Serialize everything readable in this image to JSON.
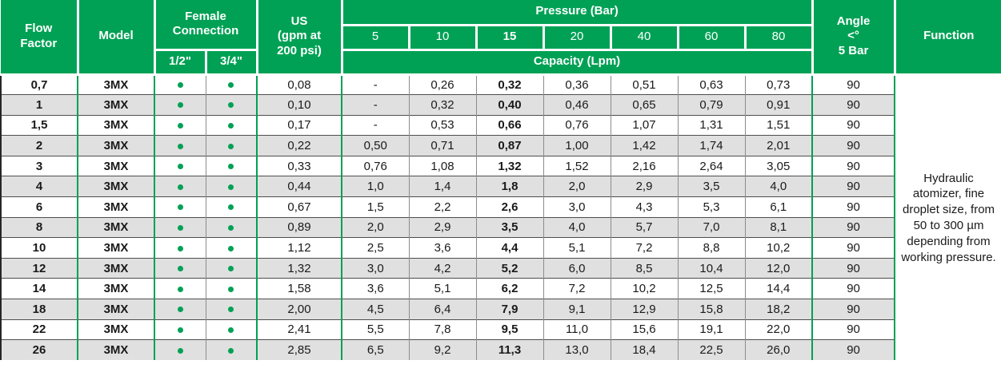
{
  "table": {
    "headers": {
      "flow_factor": "Flow\nFactor",
      "model": "Model",
      "female_connection": "Female\nConnection",
      "half_inch": "1/2\"",
      "three_quarter_inch": "3/4\"",
      "us_gpm": "US\n(gpm at\n200 psi)",
      "pressure_bar": "Pressure (Bar)",
      "pressure_ticks": [
        "5",
        "10",
        "15",
        "20",
        "40",
        "60",
        "80"
      ],
      "capacity_lpm": "Capacity (Lpm)",
      "angle": "Angle\n<°\n5 Bar",
      "function": "Function"
    },
    "rows": [
      {
        "flow_factor": "0,7",
        "model": "3MX",
        "half": true,
        "three_quarter": true,
        "us_gpm": "0,08",
        "capacities": [
          "-",
          "0,26",
          "0,32",
          "0,36",
          "0,51",
          "0,63",
          "0,73"
        ],
        "angle": "90"
      },
      {
        "flow_factor": "1",
        "model": "3MX",
        "half": true,
        "three_quarter": true,
        "us_gpm": "0,10",
        "capacities": [
          "-",
          "0,32",
          "0,40",
          "0,46",
          "0,65",
          "0,79",
          "0,91"
        ],
        "angle": "90"
      },
      {
        "flow_factor": "1,5",
        "model": "3MX",
        "half": true,
        "three_quarter": true,
        "us_gpm": "0,17",
        "capacities": [
          "-",
          "0,53",
          "0,66",
          "0,76",
          "1,07",
          "1,31",
          "1,51"
        ],
        "angle": "90"
      },
      {
        "flow_factor": "2",
        "model": "3MX",
        "half": true,
        "three_quarter": true,
        "us_gpm": "0,22",
        "capacities": [
          "0,50",
          "0,71",
          "0,87",
          "1,00",
          "1,42",
          "1,74",
          "2,01"
        ],
        "angle": "90"
      },
      {
        "flow_factor": "3",
        "model": "3MX",
        "half": true,
        "three_quarter": true,
        "us_gpm": "0,33",
        "capacities": [
          "0,76",
          "1,08",
          "1,32",
          "1,52",
          "2,16",
          "2,64",
          "3,05"
        ],
        "angle": "90"
      },
      {
        "flow_factor": "4",
        "model": "3MX",
        "half": true,
        "three_quarter": true,
        "us_gpm": "0,44",
        "capacities": [
          "1,0",
          "1,4",
          "1,8",
          "2,0",
          "2,9",
          "3,5",
          "4,0"
        ],
        "angle": "90"
      },
      {
        "flow_factor": "6",
        "model": "3MX",
        "half": true,
        "three_quarter": true,
        "us_gpm": "0,67",
        "capacities": [
          "1,5",
          "2,2",
          "2,6",
          "3,0",
          "4,3",
          "5,3",
          "6,1"
        ],
        "angle": "90"
      },
      {
        "flow_factor": "8",
        "model": "3MX",
        "half": true,
        "three_quarter": true,
        "us_gpm": "0,89",
        "capacities": [
          "2,0",
          "2,9",
          "3,5",
          "4,0",
          "5,7",
          "7,0",
          "8,1"
        ],
        "angle": "90"
      },
      {
        "flow_factor": "10",
        "model": "3MX",
        "half": true,
        "three_quarter": true,
        "us_gpm": "1,12",
        "capacities": [
          "2,5",
          "3,6",
          "4,4",
          "5,1",
          "7,2",
          "8,8",
          "10,2"
        ],
        "angle": "90"
      },
      {
        "flow_factor": "12",
        "model": "3MX",
        "half": true,
        "three_quarter": true,
        "us_gpm": "1,32",
        "capacities": [
          "3,0",
          "4,2",
          "5,2",
          "6,0",
          "8,5",
          "10,4",
          "12,0"
        ],
        "angle": "90"
      },
      {
        "flow_factor": "14",
        "model": "3MX",
        "half": true,
        "three_quarter": true,
        "us_gpm": "1,58",
        "capacities": [
          "3,6",
          "5,1",
          "6,2",
          "7,2",
          "10,2",
          "12,5",
          "14,4"
        ],
        "angle": "90"
      },
      {
        "flow_factor": "18",
        "model": "3MX",
        "half": true,
        "three_quarter": true,
        "us_gpm": "2,00",
        "capacities": [
          "4,5",
          "6,4",
          "7,9",
          "9,1",
          "12,9",
          "15,8",
          "18,2"
        ],
        "angle": "90"
      },
      {
        "flow_factor": "22",
        "model": "3MX",
        "half": true,
        "three_quarter": true,
        "us_gpm": "2,41",
        "capacities": [
          "5,5",
          "7,8",
          "9,5",
          "11,0",
          "15,6",
          "19,1",
          "22,0"
        ],
        "angle": "90"
      },
      {
        "flow_factor": "26",
        "model": "3MX",
        "half": true,
        "three_quarter": true,
        "us_gpm": "2,85",
        "capacities": [
          "6,5",
          "9,2",
          "11,3",
          "13,0",
          "18,4",
          "22,5",
          "26,0"
        ],
        "angle": "90"
      }
    ],
    "function_text": "Hydraulic atomizer, fine droplet size, from 50 to 300 µm depending from working pressure.",
    "bold_pressure_column_index": 2
  },
  "colors": {
    "header_green": "#00a155",
    "row_alternate": "#e0e0e0",
    "row_separator": "#4d4d4d",
    "column_separator_gray": "#8c8c8c"
  }
}
